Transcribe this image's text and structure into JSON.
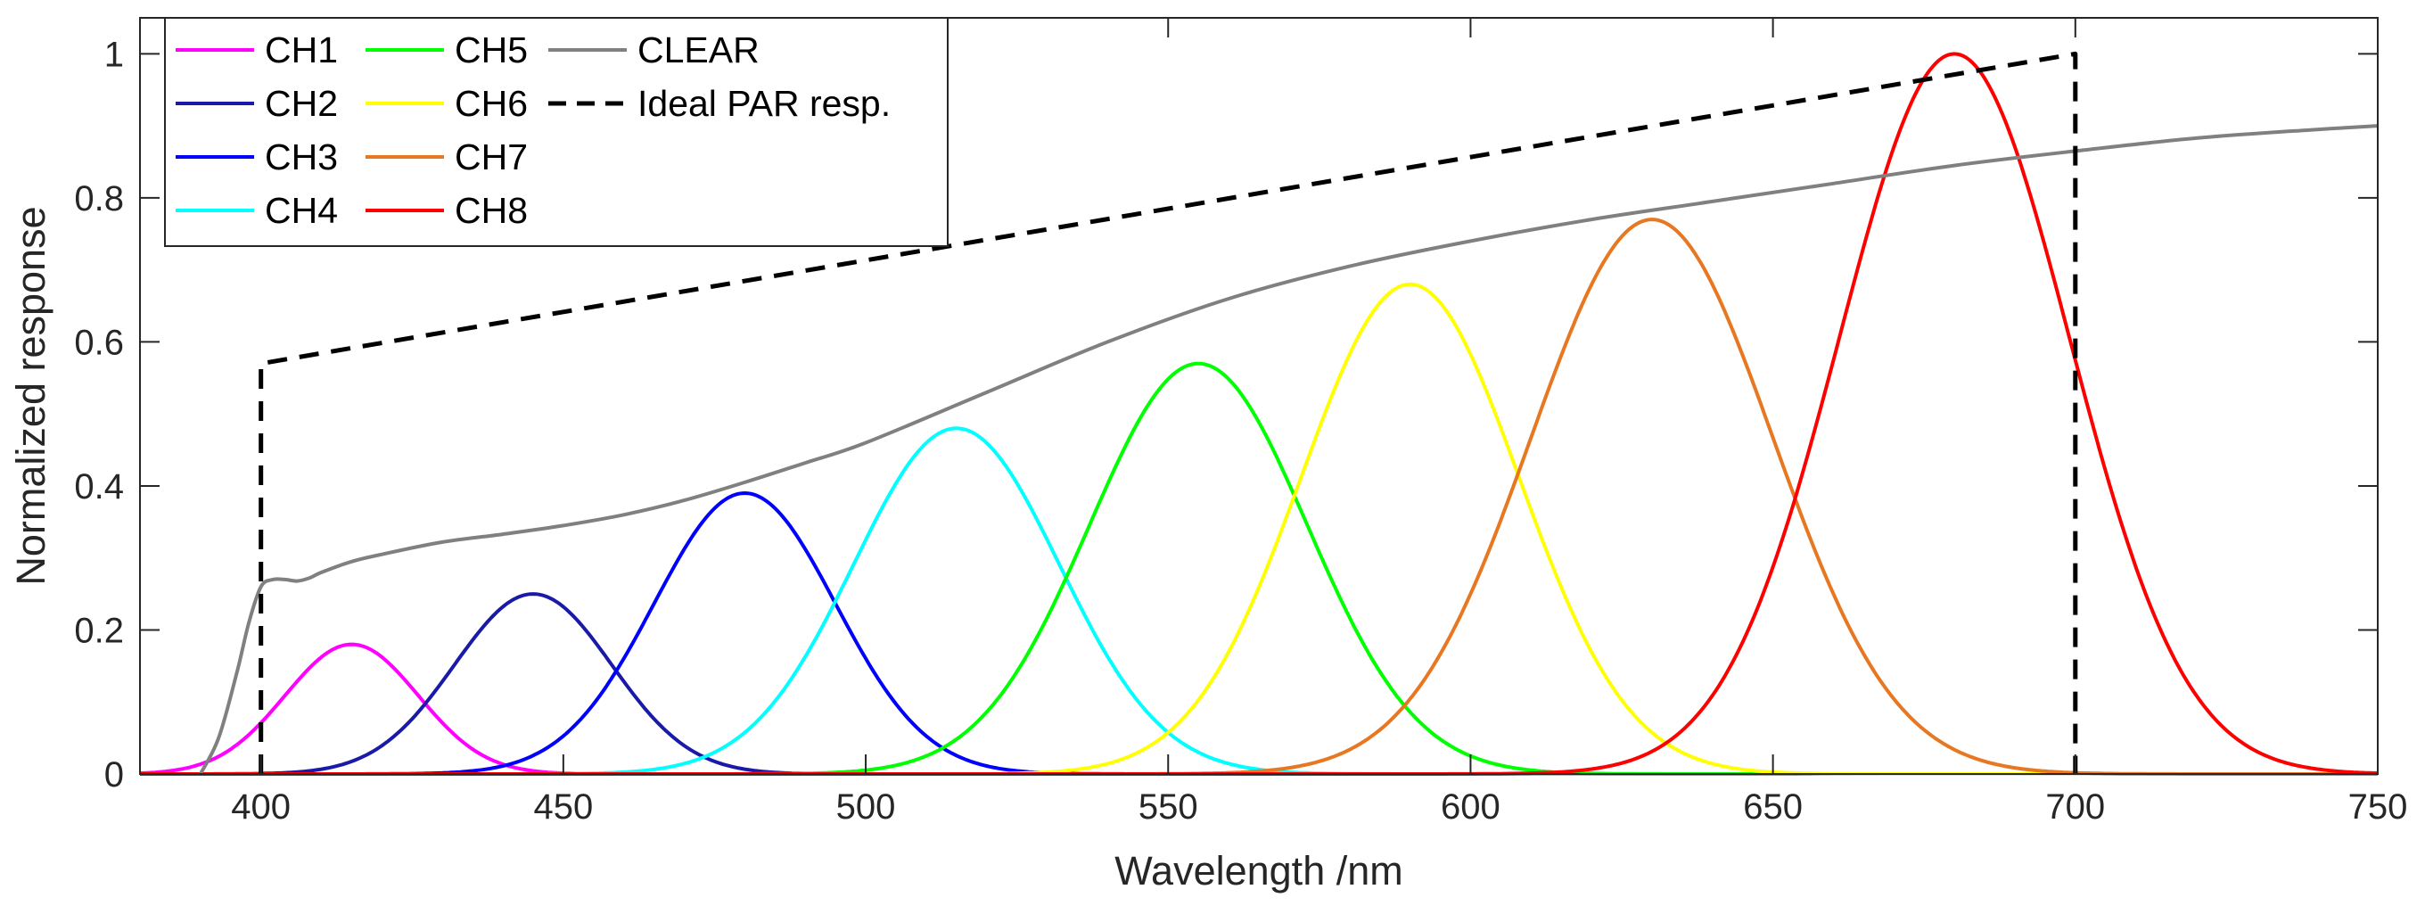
{
  "chart_data": {
    "type": "line",
    "title": "",
    "xlabel": "Wavelength /nm",
    "ylabel": "Normalized response",
    "xlim": [
      380,
      750
    ],
    "ylim": [
      0,
      1.05
    ],
    "xticks": [
      400,
      450,
      500,
      550,
      600,
      650,
      700,
      750
    ],
    "yticks": [
      0,
      0.2,
      0.4,
      0.6,
      0.8,
      1
    ],
    "xtick_labels": [
      "400",
      "450",
      "500",
      "550",
      "600",
      "650",
      "700",
      "750"
    ],
    "ytick_labels": [
      "0",
      "0.2",
      "0.4",
      "0.6",
      "0.8",
      "1"
    ],
    "grid": false,
    "legend_position": "top-left",
    "series": [
      {
        "name": "CH1",
        "kind": "gaussian",
        "peak_nm": 415,
        "amplitude": 0.18,
        "sigma_nm": 11,
        "color": "#ff00ff",
        "dash": "solid"
      },
      {
        "name": "CH2",
        "kind": "gaussian",
        "peak_nm": 445,
        "amplitude": 0.25,
        "sigma_nm": 13,
        "color": "#1a1aa8",
        "dash": "solid"
      },
      {
        "name": "CH3",
        "kind": "gaussian",
        "peak_nm": 480,
        "amplitude": 0.39,
        "sigma_nm": 15,
        "color": "#0000ff",
        "dash": "solid"
      },
      {
        "name": "CH4",
        "kind": "gaussian",
        "peak_nm": 515,
        "amplitude": 0.48,
        "sigma_nm": 17,
        "color": "#00ffff",
        "dash": "solid"
      },
      {
        "name": "CH5",
        "kind": "gaussian",
        "peak_nm": 555,
        "amplitude": 0.57,
        "sigma_nm": 18,
        "color": "#00ff00",
        "dash": "solid"
      },
      {
        "name": "CH6",
        "kind": "gaussian",
        "peak_nm": 590,
        "amplitude": 0.68,
        "sigma_nm": 18,
        "color": "#ffff00",
        "dash": "solid"
      },
      {
        "name": "CH7",
        "kind": "gaussian",
        "peak_nm": 630,
        "amplitude": 0.77,
        "sigma_nm": 20,
        "color": "#e87722",
        "dash": "solid"
      },
      {
        "name": "CH8",
        "kind": "gaussian",
        "peak_nm": 680,
        "amplitude": 1.0,
        "sigma_nm": 19,
        "color": "#ff0000",
        "dash": "solid"
      },
      {
        "name": "CLEAR",
        "kind": "points",
        "color": "#808080",
        "dash": "solid",
        "x": [
          390,
          393,
          396,
          398,
          400,
          402,
          404,
          406,
          408,
          410,
          415,
          420,
          430,
          440,
          450,
          460,
          470,
          480,
          490,
          500,
          520,
          540,
          560,
          580,
          600,
          620,
          640,
          660,
          680,
          700,
          720,
          740,
          750
        ],
        "y": [
          0.0,
          0.05,
          0.14,
          0.21,
          0.26,
          0.27,
          0.27,
          0.268,
          0.272,
          0.28,
          0.295,
          0.305,
          0.322,
          0.333,
          0.345,
          0.36,
          0.38,
          0.405,
          0.432,
          0.46,
          0.53,
          0.6,
          0.66,
          0.705,
          0.74,
          0.77,
          0.795,
          0.82,
          0.845,
          0.865,
          0.883,
          0.895,
          0.9
        ]
      },
      {
        "name": "Ideal PAR resp.",
        "kind": "points",
        "color": "#000000",
        "dash": "dashed",
        "x": [
          400,
          400,
          700,
          700
        ],
        "y": [
          0,
          0.57,
          1.0,
          0
        ]
      }
    ],
    "legend_entries": [
      {
        "label": "CH1",
        "color": "#ff00ff",
        "dash": "solid"
      },
      {
        "label": "CH2",
        "color": "#1a1aa8",
        "dash": "solid"
      },
      {
        "label": "CH3",
        "color": "#0000ff",
        "dash": "solid"
      },
      {
        "label": "CH4",
        "color": "#00ffff",
        "dash": "solid"
      },
      {
        "label": "CH5",
        "color": "#00ff00",
        "dash": "solid"
      },
      {
        "label": "CH6",
        "color": "#ffff00",
        "dash": "solid"
      },
      {
        "label": "CH7",
        "color": "#e87722",
        "dash": "solid"
      },
      {
        "label": "CH8",
        "color": "#ff0000",
        "dash": "solid"
      },
      {
        "label": "CLEAR",
        "color": "#808080",
        "dash": "solid"
      },
      {
        "label": "Ideal PAR resp.",
        "color": "#000000",
        "dash": "dashed"
      }
    ]
  }
}
